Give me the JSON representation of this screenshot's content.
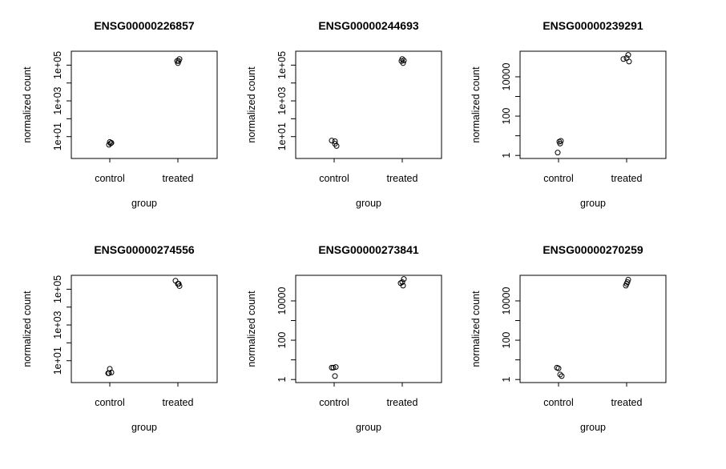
{
  "chart_data": [
    {
      "type": "scatter",
      "title": "ENSG00000226857",
      "xlabel": "group",
      "ylabel": "normalized count",
      "log_y": true,
      "ylim": [
        0.6,
        600000
      ],
      "categories": [
        "control",
        "treated"
      ],
      "yticks": [
        10,
        1000,
        100000
      ],
      "ytick_labels": [
        "1e+01",
        "1e+03",
        "1e+05"
      ],
      "points": [
        {
          "x": "control",
          "y": 5.0
        },
        {
          "x": "control",
          "y": 4.2
        },
        {
          "x": "control",
          "y": 3.5
        },
        {
          "x": "control",
          "y": 4.5
        },
        {
          "x": "treated",
          "y": 220000
        },
        {
          "x": "treated",
          "y": 170000
        },
        {
          "x": "treated",
          "y": 130000
        },
        {
          "x": "treated",
          "y": 170000
        }
      ]
    },
    {
      "type": "scatter",
      "title": "ENSG00000244693",
      "xlabel": "group",
      "ylabel": "normalized count",
      "log_y": true,
      "ylim": [
        0.6,
        600000
      ],
      "categories": [
        "control",
        "treated"
      ],
      "yticks": [
        10,
        1000,
        100000
      ],
      "ytick_labels": [
        "1e+01",
        "1e+03",
        "1e+05"
      ],
      "points": [
        {
          "x": "control",
          "y": 6.0
        },
        {
          "x": "control",
          "y": 5.5
        },
        {
          "x": "control",
          "y": 3.0
        },
        {
          "x": "control",
          "y": 4.0
        },
        {
          "x": "treated",
          "y": 220000
        },
        {
          "x": "treated",
          "y": 180000
        },
        {
          "x": "treated",
          "y": 130000
        },
        {
          "x": "treated",
          "y": 170000
        }
      ]
    },
    {
      "type": "scatter",
      "title": "ENSG00000239291",
      "xlabel": "group",
      "ylabel": "normalized count",
      "log_y": true,
      "ylim": [
        0.7,
        200000
      ],
      "categories": [
        "control",
        "treated"
      ],
      "yticks": [
        1,
        100,
        10000
      ],
      "ytick_labels": [
        "1",
        "100",
        "10000"
      ],
      "points": [
        {
          "x": "control",
          "y": 5.0
        },
        {
          "x": "control",
          "y": 5.5
        },
        {
          "x": "control",
          "y": 4.0
        },
        {
          "x": "control",
          "y": 1.4
        },
        {
          "x": "treated",
          "y": 130000
        },
        {
          "x": "treated",
          "y": 90000
        },
        {
          "x": "treated",
          "y": 80000
        },
        {
          "x": "treated",
          "y": 60000
        }
      ]
    },
    {
      "type": "scatter",
      "title": "ENSG00000274556",
      "xlabel": "group",
      "ylabel": "normalized count",
      "log_y": true,
      "ylim": [
        0.6,
        600000
      ],
      "categories": [
        "control",
        "treated"
      ],
      "yticks": [
        10,
        1000,
        100000
      ],
      "ytick_labels": [
        "1e+01",
        "1e+03",
        "1e+05"
      ],
      "points": [
        {
          "x": "control",
          "y": 3.5
        },
        {
          "x": "control",
          "y": 2.0
        },
        {
          "x": "control",
          "y": 2.0
        },
        {
          "x": "control",
          "y": 2.2
        },
        {
          "x": "treated",
          "y": 300000
        },
        {
          "x": "treated",
          "y": 200000
        },
        {
          "x": "treated",
          "y": 150000
        },
        {
          "x": "treated",
          "y": 200000
        }
      ]
    },
    {
      "type": "scatter",
      "title": "ENSG00000273841",
      "xlabel": "group",
      "ylabel": "normalized count",
      "log_y": true,
      "ylim": [
        0.7,
        200000
      ],
      "categories": [
        "control",
        "treated"
      ],
      "yticks": [
        1,
        100,
        10000
      ],
      "ytick_labels": [
        "1",
        "100",
        "10000"
      ],
      "points": [
        {
          "x": "control",
          "y": 4.0
        },
        {
          "x": "control",
          "y": 4.0
        },
        {
          "x": "control",
          "y": 4.3
        },
        {
          "x": "control",
          "y": 1.5
        },
        {
          "x": "treated",
          "y": 130000
        },
        {
          "x": "treated",
          "y": 90000
        },
        {
          "x": "treated",
          "y": 80000
        },
        {
          "x": "treated",
          "y": 60000
        }
      ]
    },
    {
      "type": "scatter",
      "title": "ENSG00000270259",
      "xlabel": "group",
      "ylabel": "normalized count",
      "log_y": true,
      "ylim": [
        0.7,
        200000
      ],
      "categories": [
        "control",
        "treated"
      ],
      "yticks": [
        1,
        100,
        10000
      ],
      "ytick_labels": [
        "1",
        "100",
        "10000"
      ],
      "points": [
        {
          "x": "control",
          "y": 4.0
        },
        {
          "x": "control",
          "y": 3.7
        },
        {
          "x": "control",
          "y": 1.8
        },
        {
          "x": "control",
          "y": 1.5
        },
        {
          "x": "treated",
          "y": 120000
        },
        {
          "x": "treated",
          "y": 90000
        },
        {
          "x": "treated",
          "y": 75000
        },
        {
          "x": "treated",
          "y": 60000
        }
      ]
    }
  ]
}
